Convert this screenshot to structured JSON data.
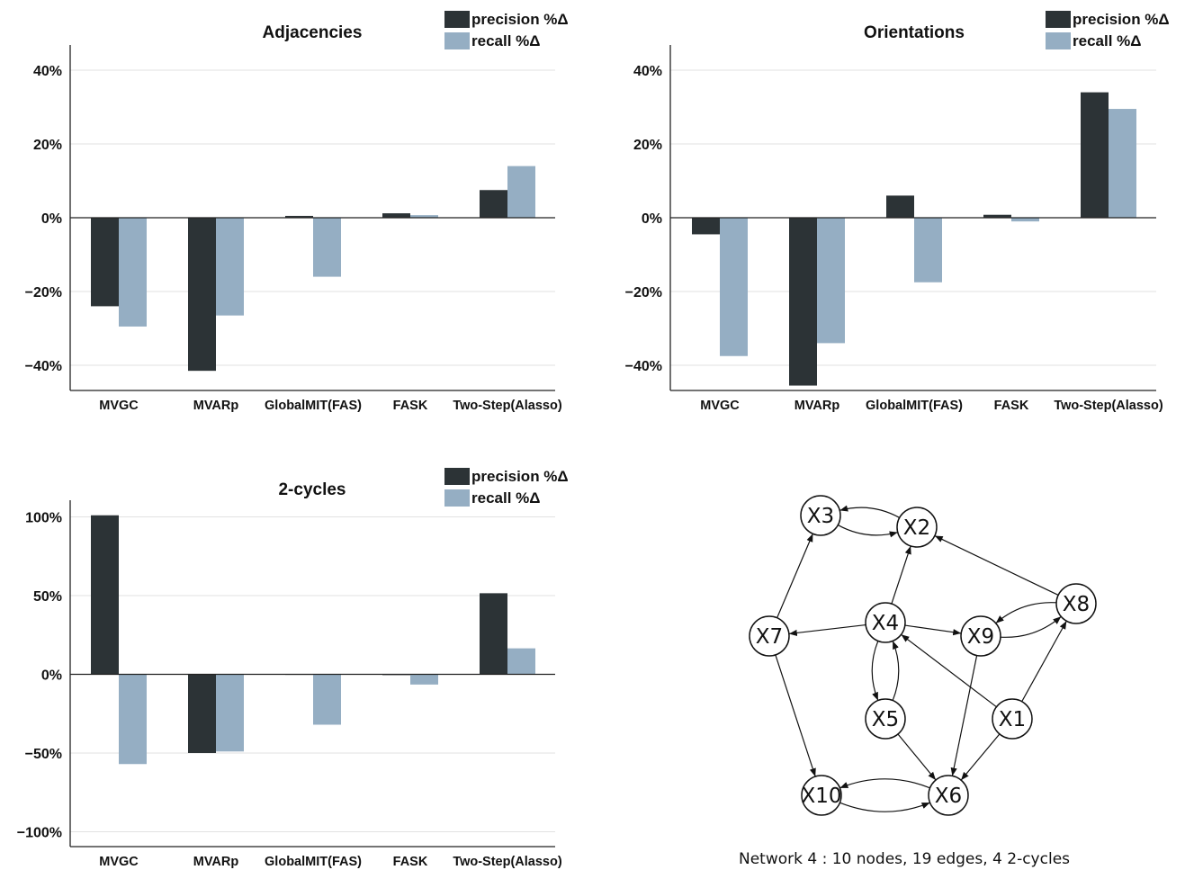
{
  "colors": {
    "precision": "#2c3336",
    "recall": "#95aec3"
  },
  "legend": {
    "precision": "precision %Δ",
    "recall": "recall %Δ"
  },
  "chart_data": [
    {
      "type": "bar",
      "title": "Adjacencies",
      "categories": [
        "MVGC",
        "MVARp",
        "GlobalMIT(FAS)",
        "FASK",
        "Two-Step(Alasso)"
      ],
      "series": [
        {
          "name": "precision %Δ",
          "values": [
            -24,
            -41.5,
            0.5,
            1.2,
            7.5
          ]
        },
        {
          "name": "recall %Δ",
          "values": [
            -29.5,
            -26.5,
            -16,
            0.7,
            14
          ]
        }
      ],
      "ylim": [
        -47,
        47
      ],
      "yticks": [
        -40,
        -20,
        0,
        20,
        40
      ],
      "ytick_labels": [
        "−40%",
        "−20%",
        "0%",
        "20%",
        "40%"
      ],
      "grid": true,
      "legend_position": "top-right"
    },
    {
      "type": "bar",
      "title": "Orientations",
      "categories": [
        "MVGC",
        "MVARp",
        "GlobalMIT(FAS)",
        "FASK",
        "Two-Step(Alasso)"
      ],
      "series": [
        {
          "name": "precision %Δ",
          "values": [
            -4.5,
            -45.5,
            6,
            0.8,
            34
          ]
        },
        {
          "name": "recall %Δ",
          "values": [
            -37.5,
            -34,
            -17.5,
            -1,
            29.5
          ]
        }
      ],
      "ylim": [
        -47,
        47
      ],
      "yticks": [
        -40,
        -20,
        0,
        20,
        40
      ],
      "ytick_labels": [
        "−40%",
        "−20%",
        "0%",
        "20%",
        "40%"
      ],
      "grid": true,
      "legend_position": "top-right"
    },
    {
      "type": "bar",
      "title": "2-cycles",
      "categories": [
        "MVGC",
        "MVARp",
        "GlobalMIT(FAS)",
        "FASK",
        "Two-Step(Alasso)"
      ],
      "series": [
        {
          "name": "precision %Δ",
          "values": [
            101,
            -50,
            0,
            -0.5,
            51.5
          ]
        },
        {
          "name": "recall %Δ",
          "values": [
            -57,
            -49,
            -32,
            -6.5,
            16.5
          ]
        }
      ],
      "ylim": [
        -110,
        110
      ],
      "yticks": [
        -100,
        -50,
        0,
        50,
        100
      ],
      "ytick_labels": [
        "−100%",
        "−50%",
        "0%",
        "50%",
        "100%"
      ],
      "grid": true,
      "legend_position": "top-right"
    }
  ],
  "network": {
    "caption": "Network 4 : 10 nodes, 19 edges, 4 2-cycles",
    "nodes": [
      "X1",
      "X2",
      "X3",
      "X4",
      "X5",
      "X6",
      "X7",
      "X8",
      "X9",
      "X10"
    ],
    "edges": [
      [
        "X2",
        "X3"
      ],
      [
        "X3",
        "X2"
      ],
      [
        "X4",
        "X2"
      ],
      [
        "X8",
        "X2"
      ],
      [
        "X7",
        "X3"
      ],
      [
        "X4",
        "X7"
      ],
      [
        "X4",
        "X9"
      ],
      [
        "X9",
        "X8"
      ],
      [
        "X8",
        "X9"
      ],
      [
        "X4",
        "X5"
      ],
      [
        "X5",
        "X4"
      ],
      [
        "X1",
        "X4"
      ],
      [
        "X1",
        "X8"
      ],
      [
        "X5",
        "X6"
      ],
      [
        "X9",
        "X6"
      ],
      [
        "X1",
        "X6"
      ],
      [
        "X7",
        "X10"
      ],
      [
        "X6",
        "X10"
      ],
      [
        "X10",
        "X6"
      ]
    ]
  }
}
